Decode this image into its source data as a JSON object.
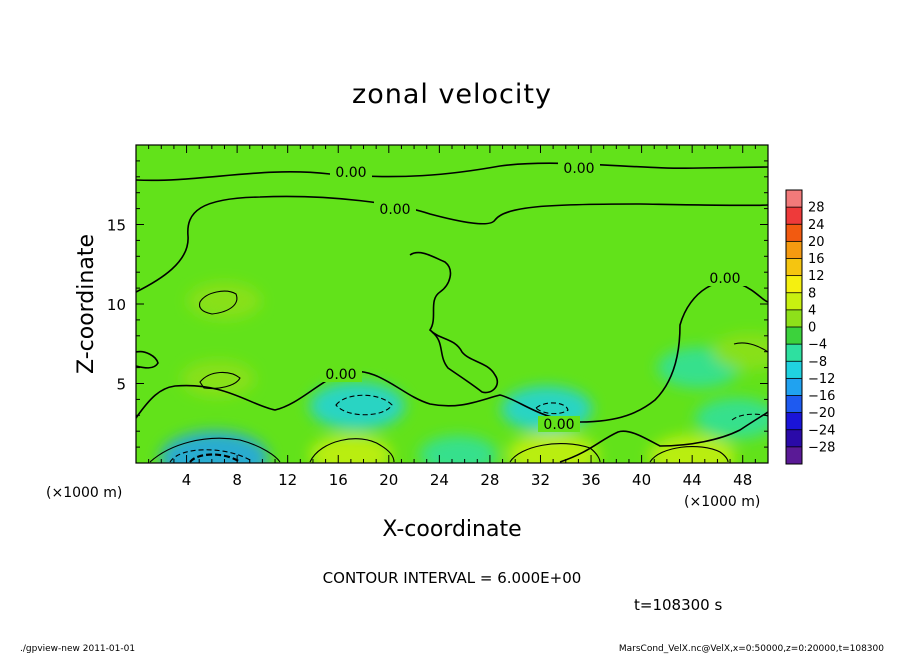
{
  "chart_data": {
    "type": "heatmap",
    "title": "zonal velocity",
    "xlabel": "X-coordinate",
    "ylabel": "Z-coordinate",
    "x_unit": "(×1000 m)",
    "y_unit": "(×1000 m)",
    "xlim": [
      0,
      50
    ],
    "ylim": [
      0,
      20
    ],
    "x_ticks": [
      "4",
      "8",
      "12",
      "16",
      "20",
      "24",
      "28",
      "32",
      "36",
      "40",
      "44",
      "48"
    ],
    "y_ticks": [
      "5",
      "10",
      "15"
    ],
    "contour_interval_text": "CONTOUR INTERVAL = 6.000E+00",
    "contour_label": "0.00",
    "time_text": "t=108300 s",
    "colorbar": {
      "levels": [
        "28",
        "24",
        "20",
        "16",
        "12",
        "8",
        "4",
        "0",
        "−4",
        "−8",
        "−12",
        "−16",
        "−20",
        "−24",
        "−28"
      ],
      "colors": [
        "#f27a7a",
        "#ee3a3a",
        "#f25a10",
        "#f59a10",
        "#f5c510",
        "#f5f010",
        "#c8f010",
        "#8ee01a",
        "#3cd23c",
        "#2ee0a0",
        "#20d2e0",
        "#20a2f0",
        "#1e5af0",
        "#1a14d8",
        "#2a0aa8",
        "#5a1a96"
      ]
    },
    "blobs": [
      {
        "x": 6.2,
        "z": 0.3,
        "value": -12
      },
      {
        "x": 17.5,
        "z": 3.6,
        "value": -9
      },
      {
        "x": 32.5,
        "z": 3.4,
        "value": -8
      },
      {
        "x": 47.5,
        "z": 2.8,
        "value": -6
      },
      {
        "x": 44.5,
        "z": 6.0,
        "value": -6
      },
      {
        "x": 25.5,
        "z": 0.5,
        "value": -5
      },
      {
        "x": 7.0,
        "z": 10.2,
        "value": 4
      },
      {
        "x": 6.5,
        "z": 5.3,
        "value": 4
      },
      {
        "x": 17.0,
        "z": 0.5,
        "value": 6
      },
      {
        "x": 33.0,
        "z": 0.5,
        "value": 8
      },
      {
        "x": 44.0,
        "z": 0.4,
        "value": 7
      },
      {
        "x": 48.5,
        "z": 7.0,
        "value": 4
      }
    ]
  },
  "footer_left": "./gpview-new   2011-01-01",
  "footer_right": "MarsCond_VelX.nc@VelX,x=0:50000,z=0:20000,t=108300"
}
